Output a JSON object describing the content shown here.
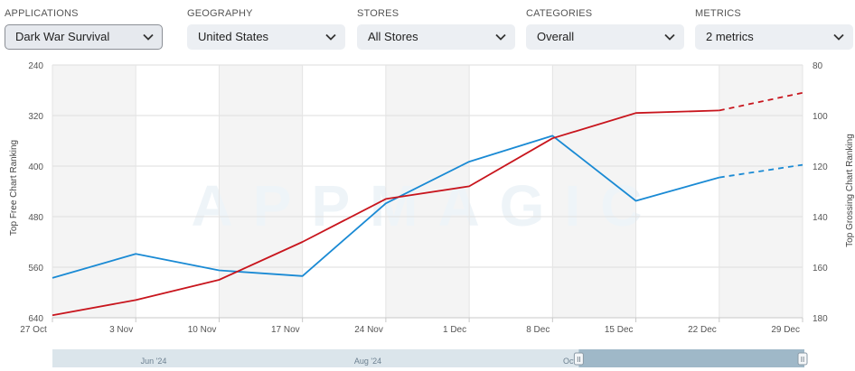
{
  "filters": [
    {
      "label": "APPLICATIONS",
      "value": "Dark War Survival"
    },
    {
      "label": "GEOGRAPHY",
      "value": "United States"
    },
    {
      "label": "STORES",
      "value": "All Stores"
    },
    {
      "label": "CATEGORIES",
      "value": "Overall"
    },
    {
      "label": "METRICS",
      "value": "2 metrics"
    }
  ],
  "watermark": "APPMAGIC",
  "chart_data": {
    "type": "line",
    "x": [
      "27 Oct",
      "3 Nov",
      "10 Nov",
      "17 Nov",
      "24 Nov",
      "1 Dec",
      "8 Dec",
      "15 Dec",
      "22 Dec",
      "29 Dec"
    ],
    "ylabel_left": "Top Free Chart Ranking",
    "ylabel_right": "Top Grossing Chart Ranking",
    "yticks_left": [
      "240",
      "320",
      "400",
      "480",
      "560",
      "640"
    ],
    "yticks_right": [
      "80",
      "100",
      "120",
      "140",
      "160",
      "180"
    ],
    "ylim_left": [
      640,
      240
    ],
    "ylim_right": [
      180,
      80
    ],
    "y_inverted": true,
    "grid": true,
    "series": [
      {
        "axis": "left",
        "color": "#1a8ad4",
        "values": [
          577,
          539,
          565,
          574,
          459,
          393,
          352,
          455,
          418,
          398
        ],
        "dashed_from_index": 8
      },
      {
        "axis": "right",
        "color": "#c8151d",
        "values": [
          179,
          173,
          165,
          150,
          133,
          128,
          109,
          99,
          98,
          91
        ],
        "dashed_from_index": 8
      }
    ]
  },
  "navigator": {
    "labels": [
      "Jun '24",
      "Aug '24",
      "Oct"
    ],
    "handle_glyph": "II",
    "selection_start": 0.7,
    "selection_end": 1.0
  }
}
